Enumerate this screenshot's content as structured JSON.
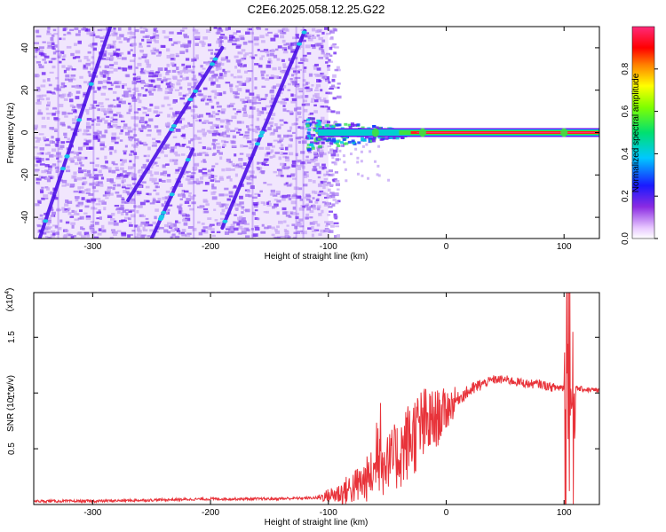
{
  "title": "C2E6.2025.058.12.25.G22",
  "colors": {
    "line": "#e8333a",
    "axis": "#000000",
    "spectrogram_dots": "#6a1ef0",
    "spectrogram_light": "#c9a8f8"
  },
  "chart_data": [
    {
      "type": "heatmap",
      "title": "C2E6.2025.058.12.25.G22",
      "xlabel": "Height of straight line (km)",
      "ylabel": "Frequency (Hz)",
      "xlim": [
        -350,
        130
      ],
      "ylim": [
        -50,
        50
      ],
      "x_ticks": [
        -300,
        -200,
        -100,
        0,
        100
      ],
      "y_ticks": [
        -40,
        -20,
        0,
        20,
        40
      ],
      "colorbar": {
        "label": "Normalized spectral amplitude",
        "range": [
          0.0,
          1.0
        ],
        "ticks": [
          "0.0",
          "0.2",
          "0.4",
          "0.6",
          "0.8"
        ],
        "colormap": "rainbow (magenta-blue-cyan-green-yellow-red-pink)"
      },
      "features": {
        "noise_region_x": [
          -350,
          -100
        ],
        "diagonal_tracks": [
          {
            "x_start": -345,
            "y_start": -50,
            "x_end": -285,
            "y_end": 50
          },
          {
            "x_start": -270,
            "y_start": -32,
            "x_end": -190,
            "y_end": 40
          },
          {
            "x_start": -190,
            "y_start": -45,
            "x_end": -120,
            "y_end": 48
          },
          {
            "x_start": -250,
            "y_start": -50,
            "x_end": -215,
            "y_end": -8
          }
        ],
        "carrier_line": {
          "x_start": -120,
          "x_end": 130,
          "y": 0
        }
      }
    },
    {
      "type": "line",
      "xlabel": "Height of straight line (km)",
      "ylabel": "SNR (10 * v/v)",
      "y_multiplier_label": "(x10",
      "y_multiplier_exp": "4",
      "xlim": [
        -350,
        130
      ],
      "ylim": [
        0,
        1.9
      ],
      "x_ticks": [
        -300,
        -200,
        -100,
        0,
        100
      ],
      "y_ticks": [
        0.5,
        1.0,
        1.5
      ],
      "y_tick_labels": [
        "0.5",
        "1.0",
        "1.5"
      ],
      "series": [
        {
          "color": "#e8333a",
          "x": [
            -350,
            -300,
            -250,
            -200,
            -150,
            -110,
            -90,
            -70,
            -60,
            -50,
            -40,
            -30,
            -20,
            -10,
            0,
            10,
            20,
            30,
            40,
            50,
            60,
            70,
            80,
            90,
            100,
            105,
            110,
            130
          ],
          "y": [
            0.03,
            0.03,
            0.04,
            0.05,
            0.05,
            0.06,
            0.1,
            0.2,
            0.3,
            0.35,
            0.45,
            0.6,
            0.7,
            0.75,
            0.85,
            0.95,
            1.02,
            1.08,
            1.12,
            1.12,
            1.1,
            1.08,
            1.08,
            1.05,
            1.05,
            1.1,
            1.04,
            1.02
          ]
        }
      ]
    }
  ]
}
